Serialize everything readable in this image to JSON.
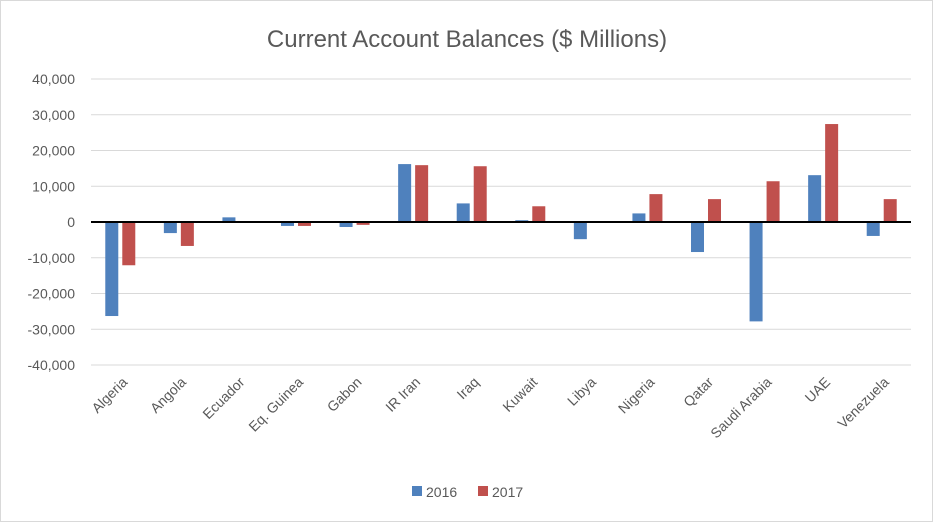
{
  "chart_data": {
    "type": "bar",
    "title": "Current Account Balances ($ Millions)",
    "xlabel": "",
    "ylabel": "",
    "ylim": [
      -40000,
      40000
    ],
    "yticks": [
      40000,
      30000,
      20000,
      10000,
      0,
      -10000,
      -20000,
      -30000,
      -40000
    ],
    "ytick_labels": [
      "40,000",
      "30,000",
      "20,000",
      "10,000",
      "0",
      "-10,000",
      "-20,000",
      "-30,000",
      "-40,000"
    ],
    "grid": true,
    "legend_position": "bottom",
    "categories": [
      "Algeria",
      "Angola",
      "Ecuador",
      "Eq. Guinea",
      "Gabon",
      "IR Iran",
      "Iraq",
      "Kuwait",
      "Libya",
      "Nigeria",
      "Qatar",
      "Saudi Arabia",
      "UAE",
      "Venezuela"
    ],
    "series": [
      {
        "name": "2016",
        "color": "#4f81bd",
        "values": [
          -26300,
          -3100,
          1300,
          -1100,
          -1400,
          16200,
          5200,
          500,
          -4800,
          2400,
          -8400,
          -27800,
          13100,
          -3900
        ]
      },
      {
        "name": "2017",
        "color": "#c0504d",
        "values": [
          -12100,
          -6700,
          0,
          -1100,
          -800,
          15900,
          15600,
          4400,
          0,
          7800,
          6400,
          11400,
          27400,
          6400
        ]
      }
    ]
  }
}
